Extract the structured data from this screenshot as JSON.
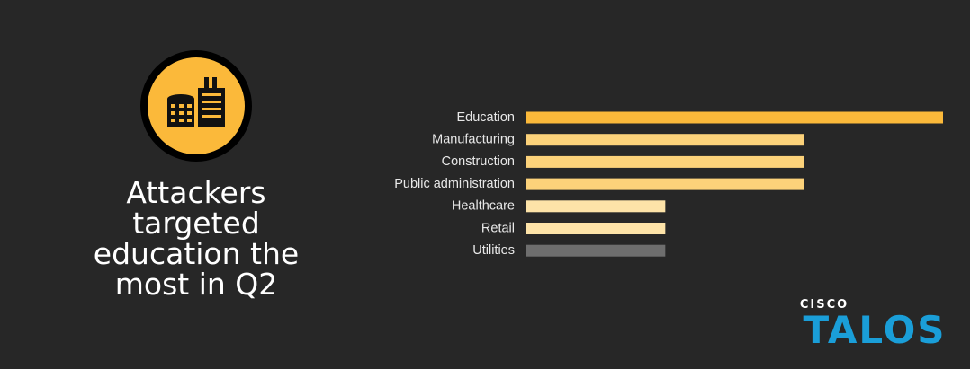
{
  "headline": [
    "Attackers",
    "targeted",
    "education the",
    "most in Q2"
  ],
  "logo": {
    "brand": "CISCO",
    "product": "TALOS"
  },
  "chart_data": {
    "type": "bar",
    "orientation": "horizontal",
    "categories": [
      "Education",
      "Manufacturing",
      "Construction",
      "Public administration",
      "Healthcare",
      "Retail",
      "Utilities"
    ],
    "values": [
      3,
      2,
      2,
      2,
      1,
      1,
      1
    ],
    "colors": [
      "#fbb93a",
      "#fcd27a",
      "#fcd27a",
      "#fcd27a",
      "#fde3a8",
      "#fde3a8",
      "#6e6e6e"
    ]
  }
}
